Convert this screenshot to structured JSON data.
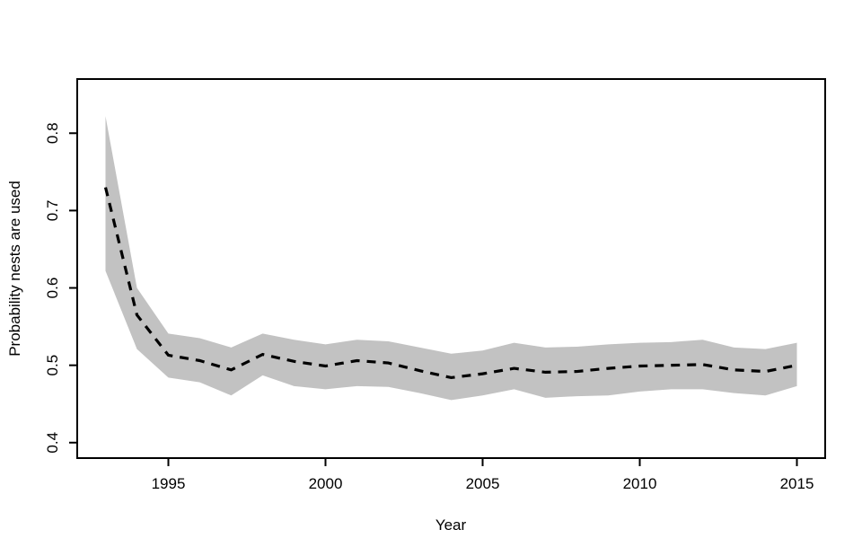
{
  "figure": {
    "background": "#ffffff",
    "text_color": "#000000",
    "axis_color": "#000000"
  },
  "chart_data": {
    "type": "line",
    "title": "",
    "xlabel": "Year",
    "ylabel": "Probability nests are used",
    "x": [
      1993,
      1994,
      1995,
      1996,
      1997,
      1998,
      1999,
      2000,
      2001,
      2002,
      2003,
      2004,
      2005,
      2006,
      2007,
      2008,
      2009,
      2010,
      2011,
      2012,
      2013,
      2014,
      2015
    ],
    "series": [
      {
        "name": "estimate",
        "role": "center-line",
        "style": "dashed",
        "color": "#000000",
        "values": [
          0.73,
          0.565,
          0.513,
          0.506,
          0.494,
          0.514,
          0.505,
          0.499,
          0.506,
          0.503,
          0.493,
          0.484,
          0.489,
          0.496,
          0.491,
          0.492,
          0.496,
          0.499,
          0.5,
          0.501,
          0.494,
          0.492,
          0.5
        ]
      },
      {
        "name": "upper-ci",
        "role": "band-upper",
        "values": [
          0.822,
          0.6,
          0.541,
          0.535,
          0.523,
          0.541,
          0.533,
          0.527,
          0.533,
          0.531,
          0.523,
          0.515,
          0.519,
          0.529,
          0.523,
          0.524,
          0.527,
          0.529,
          0.53,
          0.533,
          0.523,
          0.521,
          0.529
        ]
      },
      {
        "name": "lower-ci",
        "role": "band-lower",
        "values": [
          0.622,
          0.521,
          0.484,
          0.478,
          0.461,
          0.487,
          0.473,
          0.469,
          0.473,
          0.472,
          0.464,
          0.455,
          0.461,
          0.469,
          0.458,
          0.46,
          0.461,
          0.466,
          0.469,
          0.469,
          0.464,
          0.461,
          0.473
        ]
      }
    ],
    "band_color": "#c2c2c2",
    "x_ticks": [
      1995,
      2000,
      2005,
      2010,
      2015
    ],
    "y_ticks": [
      0.4,
      0.5,
      0.6,
      0.7,
      0.8
    ],
    "xlim": [
      1992.1,
      2015.9
    ],
    "ylim": [
      0.38,
      0.87
    ],
    "grid": false,
    "legend": "none",
    "box": true
  }
}
